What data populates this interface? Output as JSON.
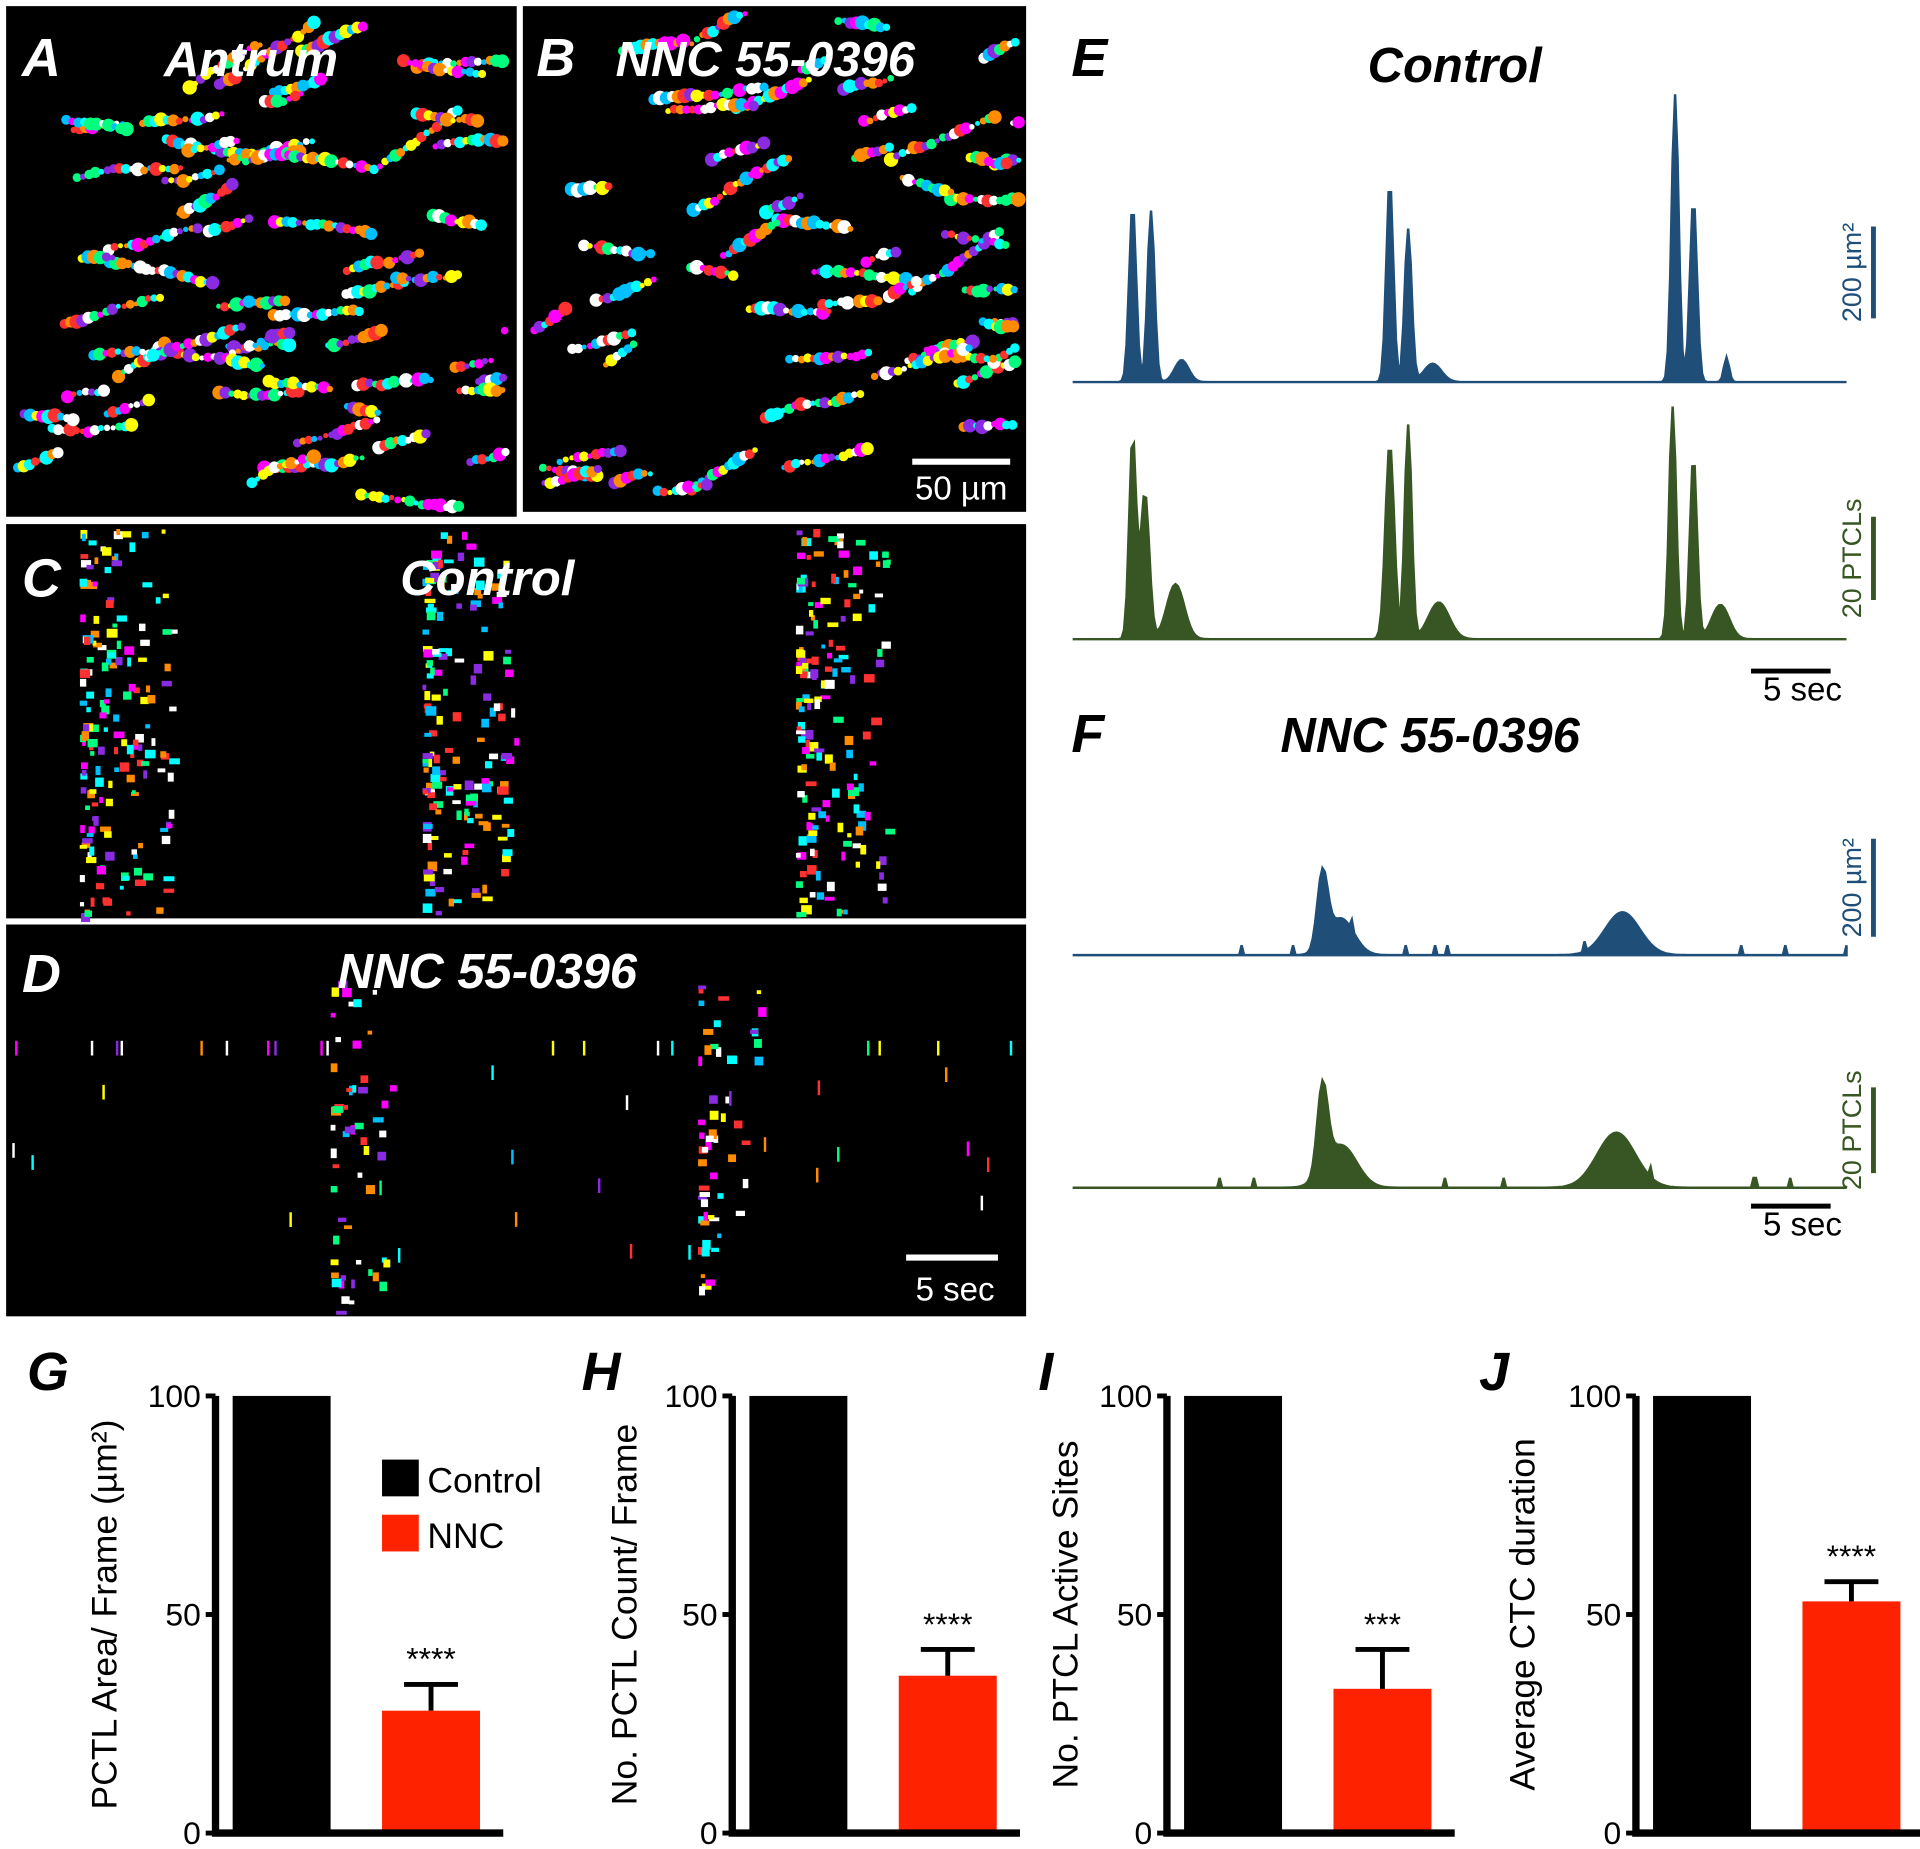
{
  "image_panels": [
    {
      "letter": "A",
      "title": "Antrum"
    },
    {
      "letter": "B",
      "title": "NNC 55-0396",
      "scale_bar": "50 µm"
    },
    {
      "letter": "C",
      "title": "Control"
    },
    {
      "letter": "D",
      "title": "NNC 55-0396",
      "scale_bar": "5 sec"
    }
  ],
  "trace_panels": [
    {
      "letter": "E",
      "title": "Control",
      "area_scale": "200 µm²",
      "count_scale": "20 PTCLs",
      "time_scale": "5 sec"
    },
    {
      "letter": "F",
      "title": "NNC 55-0396",
      "area_scale": "200 µm²",
      "count_scale": "20 PTCLs",
      "time_scale": "5 sec"
    }
  ],
  "chart_data": [
    {
      "type": "bar",
      "letter": "G",
      "y_label": "PCTL Area/ Frame (µm²)",
      "categories": [
        null,
        null
      ],
      "values": [
        100,
        28
      ],
      "errors": [
        null,
        6
      ],
      "colors": [
        "#000000",
        "#ff2200"
      ],
      "annotations": [
        null,
        "****"
      ],
      "legend": [
        "Control",
        "NNC"
      ],
      "ylim": [
        0,
        100
      ],
      "yticks": [
        0,
        50,
        100
      ]
    },
    {
      "type": "bar",
      "letter": "H",
      "y_label": "No. PCTL Count/ Frame",
      "categories": [
        null,
        null
      ],
      "values": [
        100,
        36
      ],
      "errors": [
        null,
        6
      ],
      "colors": [
        "#000000",
        "#ff2200"
      ],
      "annotations": [
        null,
        "****"
      ],
      "ylim": [
        0,
        100
      ],
      "yticks": [
        0,
        50,
        100
      ]
    },
    {
      "type": "bar",
      "letter": "I",
      "y_label": "No. PTCL Active Sites",
      "categories": [
        null,
        null
      ],
      "values": [
        100,
        33
      ],
      "errors": [
        null,
        9
      ],
      "colors": [
        "#000000",
        "#ff2200"
      ],
      "annotations": [
        null,
        "***"
      ],
      "ylim": [
        0,
        100
      ],
      "yticks": [
        0,
        50,
        100
      ]
    },
    {
      "type": "bar",
      "letter": "J",
      "y_label": "Average CTC duration",
      "categories": [
        null,
        null
      ],
      "values": [
        100,
        53
      ],
      "errors": [
        null,
        4.5
      ],
      "colors": [
        "#000000",
        "#ff2200"
      ],
      "annotations": [
        null,
        "****"
      ],
      "ylim": [
        0,
        100
      ],
      "yticks": [
        0,
        50,
        100
      ]
    }
  ]
}
